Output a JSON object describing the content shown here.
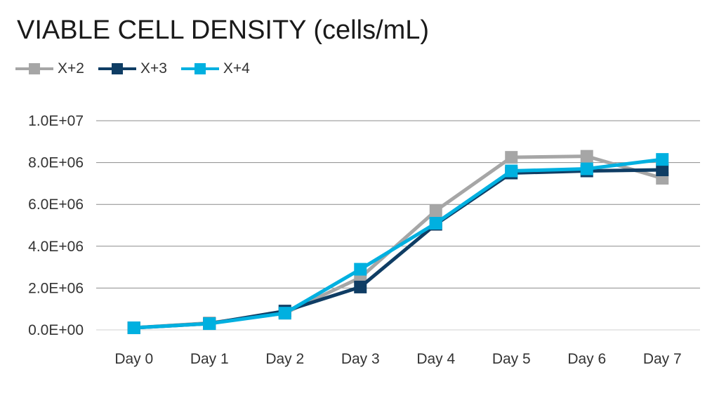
{
  "chart_data": {
    "type": "line",
    "title": "VIABLE CELL DENSITY (cells/mL)",
    "xlabel": "",
    "ylabel": "",
    "categories": [
      "Day 0",
      "Day 1",
      "Day 2",
      "Day 3",
      "Day 4",
      "Day 5",
      "Day 6",
      "Day 7"
    ],
    "ylim": [
      0,
      10000000
    ],
    "yticks": [
      0,
      2000000,
      4000000,
      6000000,
      8000000,
      10000000
    ],
    "ytick_labels": [
      "0.0E+00",
      "2.0E+06",
      "4.0E+06",
      "6.0E+06",
      "8.0E+06",
      "1.0E+07"
    ],
    "grid": "horizontal",
    "legend": "top-left",
    "series": [
      {
        "name": "X+2",
        "color": "#a6a6a6",
        "values": [
          100000,
          330000,
          800000,
          2500000,
          5700000,
          8250000,
          8300000,
          7250000
        ]
      },
      {
        "name": "X+3",
        "color": "#0f3d64",
        "values": [
          100000,
          300000,
          900000,
          2050000,
          5050000,
          7500000,
          7600000,
          7650000
        ]
      },
      {
        "name": "X+4",
        "color": "#00b0e0",
        "values": [
          100000,
          300000,
          800000,
          2900000,
          5100000,
          7600000,
          7700000,
          8150000
        ]
      }
    ]
  }
}
